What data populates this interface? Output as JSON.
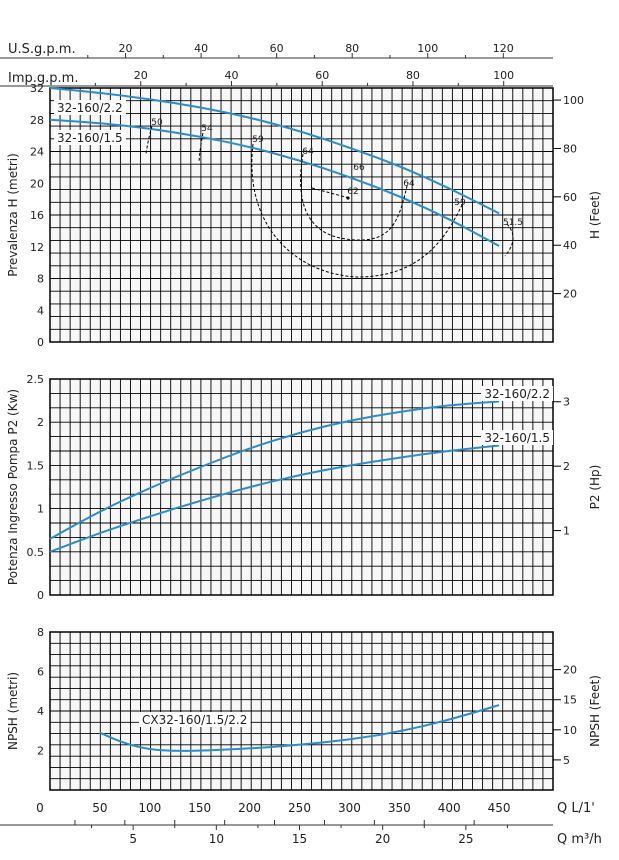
{
  "top_axes": {
    "usgpm": {
      "label": "U.S.g.p.m.",
      "ticks": [
        "20",
        "40",
        "60",
        "80",
        "100",
        "120"
      ],
      "values": [
        20,
        40,
        60,
        80,
        100,
        120
      ]
    },
    "impgpm": {
      "label": "Imp.g.p.m.",
      "ticks": [
        "20",
        "40",
        "60",
        "80",
        "100"
      ],
      "values": [
        20,
        40,
        60,
        80,
        100
      ]
    }
  },
  "bottom_axes": {
    "q_lmin": {
      "label": "Q  L/1'",
      "ticks": [
        "0",
        "50",
        "100",
        "150",
        "200",
        "250",
        "300",
        "350",
        "400",
        "450"
      ],
      "values": [
        0,
        50,
        100,
        150,
        200,
        250,
        300,
        350,
        400,
        450
      ]
    },
    "q_m3h": {
      "label": "Q  m³/h",
      "ticks": [
        "5",
        "10",
        "15",
        "20",
        "25"
      ],
      "values": [
        5,
        10,
        15,
        20,
        25
      ]
    }
  },
  "chart_data": [
    {
      "type": "line",
      "panel": "head",
      "xlabel": "",
      "ylabel": "Prevalenza H (metri)",
      "y2label": "H (Feet)",
      "ylim": [
        0,
        32
      ],
      "y_ticks": [
        "0",
        "4",
        "8",
        "12",
        "16",
        "20",
        "24",
        "28",
        "32"
      ],
      "y_tick_values": [
        0,
        4,
        8,
        12,
        16,
        20,
        24,
        28,
        32
      ],
      "y2_ticks": [
        "20",
        "40",
        "60",
        "80",
        "100"
      ],
      "y2_tick_values": [
        20,
        40,
        60,
        80,
        100
      ],
      "series": [
        {
          "name": "32-160/2.2",
          "color": "#2b8ec9",
          "x": [
            0,
            50,
            100,
            150,
            200,
            250,
            300,
            350,
            400,
            450
          ],
          "y": [
            32,
            31.4,
            30.6,
            29.6,
            28.3,
            26.6,
            24.5,
            22.2,
            19.4,
            16.2
          ]
        },
        {
          "name": "32-160/1.5",
          "color": "#2b8ec9",
          "x": [
            0,
            50,
            100,
            150,
            200,
            250,
            300,
            350,
            400,
            450
          ],
          "y": [
            28,
            27.6,
            26.9,
            25.9,
            24.6,
            22.9,
            20.8,
            18.4,
            15.5,
            12.1
          ]
        }
      ],
      "efficiency_labels": [
        "50",
        "54",
        "59",
        "64",
        "66",
        "62",
        "64",
        "59",
        "51.5"
      ]
    },
    {
      "type": "line",
      "panel": "power",
      "ylabel": "Potenza Ingresso Pompa P2 (Kw)",
      "y2label": "P2 (Hp)",
      "ylim": [
        0,
        2.5
      ],
      "y_ticks": [
        "0",
        "0.5",
        "1",
        "1.5",
        "2",
        "2.5"
      ],
      "y_tick_values": [
        0,
        0.5,
        1,
        1.5,
        2,
        2.5
      ],
      "y2_ticks": [
        "1",
        "2",
        "3"
      ],
      "y2_tick_values": [
        1,
        2,
        3
      ],
      "series": [
        {
          "name": "32-160/2.2",
          "color": "#2b8ec9",
          "x": [
            0,
            50,
            100,
            150,
            200,
            250,
            300,
            350,
            400,
            450
          ],
          "y": [
            0.65,
            0.97,
            1.24,
            1.48,
            1.7,
            1.88,
            2.02,
            2.12,
            2.2,
            2.24
          ]
        },
        {
          "name": "32-160/1.5",
          "color": "#2b8ec9",
          "x": [
            0,
            50,
            100,
            150,
            200,
            250,
            300,
            350,
            400,
            450
          ],
          "y": [
            0.5,
            0.72,
            0.91,
            1.09,
            1.25,
            1.39,
            1.5,
            1.59,
            1.67,
            1.73
          ]
        }
      ]
    },
    {
      "type": "line",
      "panel": "npsh",
      "ylabel": "NPSH (metri)",
      "y2label": "NPSH (Feet)",
      "ylim": [
        0,
        8
      ],
      "y_ticks": [
        "2",
        "4",
        "6",
        "8"
      ],
      "y_tick_values": [
        2,
        4,
        6,
        8
      ],
      "y2_ticks": [
        "5",
        "10",
        "15",
        "20"
      ],
      "y2_tick_values": [
        5,
        10,
        15,
        20
      ],
      "series": [
        {
          "name": "CX32-160/1.5/2.2",
          "color": "#2b8ec9",
          "x": [
            50,
            75,
            100,
            125,
            150,
            200,
            250,
            300,
            350,
            400,
            450
          ],
          "y": [
            2.9,
            2.35,
            2.05,
            1.97,
            1.99,
            2.1,
            2.28,
            2.55,
            2.95,
            3.55,
            4.3
          ]
        }
      ]
    }
  ]
}
